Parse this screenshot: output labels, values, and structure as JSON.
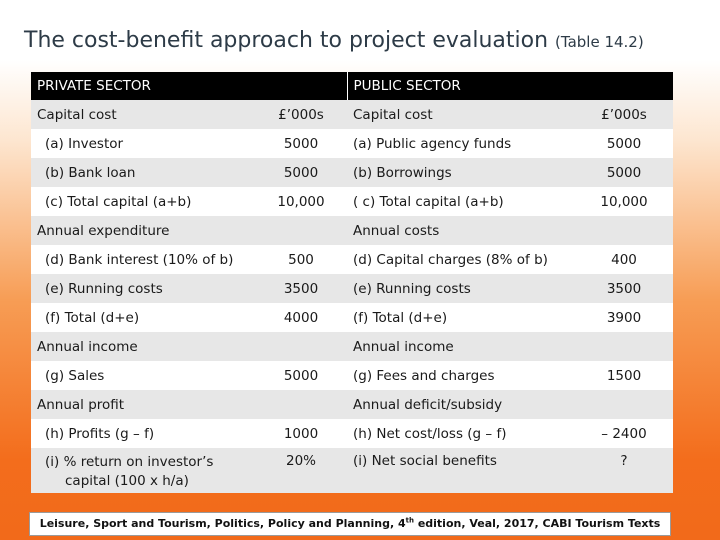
{
  "title": "The cost-benefit approach to project evaluation",
  "title_ref": "(Table 14.2)",
  "headers": {
    "private": "PRIVATE SECTOR",
    "public": "PUBLIC SECTOR"
  },
  "rows": [
    {
      "pl": "Capital cost",
      "pv": "£’000s",
      "ql": "Capital cost",
      "qv": "£’000s"
    },
    {
      "pl": "(a) Investor",
      "pv": "5000",
      "ql": "(a) Public agency funds",
      "qv": "5000"
    },
    {
      "pl": "(b) Bank loan",
      "pv": "5000",
      "ql": "(b) Borrowings",
      "qv": "5000"
    },
    {
      "pl": "(c) Total capital (a+b)",
      "pv": "10,000",
      "ql": "( c) Total capital (a+b)",
      "qv": "10,000"
    },
    {
      "pl": "Annual expenditure",
      "pv": "",
      "ql": "Annual costs",
      "qv": ""
    },
    {
      "pl": "(d) Bank interest (10% of b)",
      "pv": "500",
      "ql": "(d) Capital charges (8% of b)",
      "qv": "400"
    },
    {
      "pl": "(e) Running costs",
      "pv": "3500",
      "ql": "(e) Running costs",
      "qv": "3500"
    },
    {
      "pl": "(f) Total (d+e)",
      "pv": "4000",
      "ql": "(f) Total (d+e)",
      "qv": "3900"
    },
    {
      "pl": "Annual income",
      "pv": "",
      "ql": "Annual income",
      "qv": ""
    },
    {
      "pl": "(g) Sales",
      "pv": "5000",
      "ql": "(g) Fees and charges",
      "qv": "1500"
    },
    {
      "pl": "Annual profit",
      "pv": "",
      "ql": "Annual deficit/subsidy",
      "qv": ""
    },
    {
      "pl": "(h) Profits (g – f)",
      "pv": "1000",
      "ql": "(h) Net cost/loss (g – f)",
      "qv": "– 2400"
    },
    {
      "pl_1": "(i) % return on investor’s",
      "pl_2": "capital (100 x h/a)",
      "pv": "20%",
      "ql": "(i) Net social benefits",
      "qv": "?"
    }
  ],
  "citation": {
    "before": "Leisure, Sport and Tourism, Politics, Policy and Planning, 4",
    "sup": "th",
    "after": " edition, Veal, 2017, CABI Tourism Texts"
  }
}
